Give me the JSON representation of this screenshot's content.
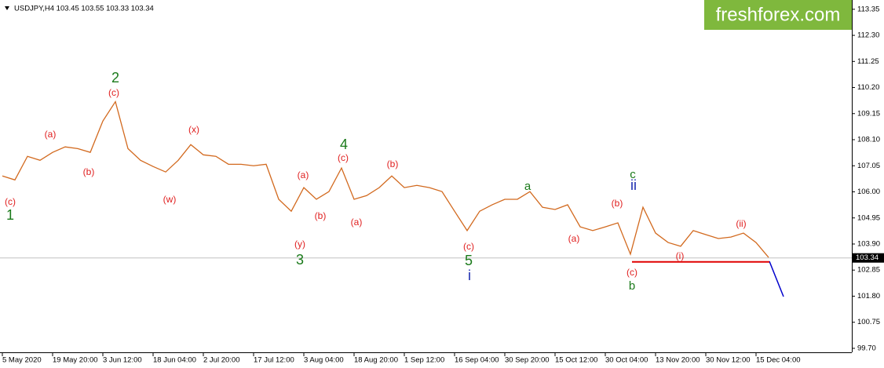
{
  "chart_data": {
    "type": "line",
    "title": "USDJPY,H4  103.45 103.55 103.33 103.34",
    "watermark": "freshforex.com",
    "x": [
      "5 May 2020",
      null,
      null,
      null,
      "19 May 20:00",
      null,
      null,
      null,
      "3 Jun 12:00",
      null,
      null,
      null,
      "18 Jun 04:00",
      null,
      null,
      null,
      "2 Jul 20:00",
      null,
      null,
      null,
      "17 Jul 12:00",
      null,
      null,
      null,
      "3 Aug 04:00",
      null,
      null,
      null,
      "18 Aug 20:00",
      null,
      null,
      null,
      "1 Sep 12:00",
      null,
      null,
      null,
      "16 Sep 04:00",
      null,
      null,
      null,
      "30 Sep 20:00",
      null,
      null,
      null,
      "15 Oct 12:00",
      null,
      null,
      null,
      "30 Oct 04:00",
      null,
      null,
      null,
      "13 Nov 20:00",
      null,
      null,
      null,
      "30 Nov 12:00",
      null,
      null,
      null,
      "15 Dec 04:00",
      null
    ],
    "series": [
      {
        "name": "USDJPY",
        "color": "#d2691e",
        "values": [
          106.64,
          106.48,
          107.43,
          107.27,
          107.59,
          107.81,
          107.74,
          107.59,
          108.85,
          109.63,
          107.74,
          107.27,
          107.02,
          106.8,
          107.27,
          107.9,
          107.49,
          107.43,
          107.11,
          107.11,
          107.05,
          107.11,
          105.7,
          105.22,
          106.17,
          105.7,
          106.01,
          106.96,
          105.7,
          105.85,
          106.17,
          106.64,
          106.17,
          106.26,
          106.17,
          106.01,
          105.22,
          104.44,
          105.22,
          105.48,
          105.7,
          105.7,
          106.01,
          105.38,
          105.29,
          105.48,
          104.59,
          104.44,
          104.59,
          104.75,
          103.49,
          105.38,
          104.34,
          103.96,
          103.81,
          104.44,
          104.28,
          104.12,
          104.18,
          104.34,
          103.96,
          103.36
        ]
      }
    ],
    "last_price": 103.34,
    "support_level": 103.18,
    "ylim": [
      99.54,
      113.66
    ],
    "yticks": [
      113.35,
      {
        "value": 112.3,
        "label": "112.30"
      },
      111.25,
      {
        "value": 110.2,
        "label": "110.20"
      },
      109.15,
      {
        "value": 108.1,
        "label": "108.10"
      },
      107.05,
      {
        "value": 106,
        "label": "106.00"
      },
      104.95,
      {
        "value": 103.9,
        "label": "103.90"
      },
      102.85,
      {
        "value": 101.8,
        "label": "101.80"
      },
      100.75,
      {
        "value": 99.7,
        "label": "99.70"
      }
    ],
    "annotations": [
      "1",
      "2",
      "3",
      "4",
      "5",
      "a",
      "c",
      "b",
      "i",
      "ii",
      "(c)",
      "(a)",
      "(b)",
      "(c)",
      "(x)",
      "(w)",
      "(a)",
      "(y)",
      "(b)",
      "(c)",
      "(a)",
      "(b)",
      "(c)",
      "(a)",
      "(b)",
      "(c)",
      "(i)",
      "(ii)"
    ]
  }
}
